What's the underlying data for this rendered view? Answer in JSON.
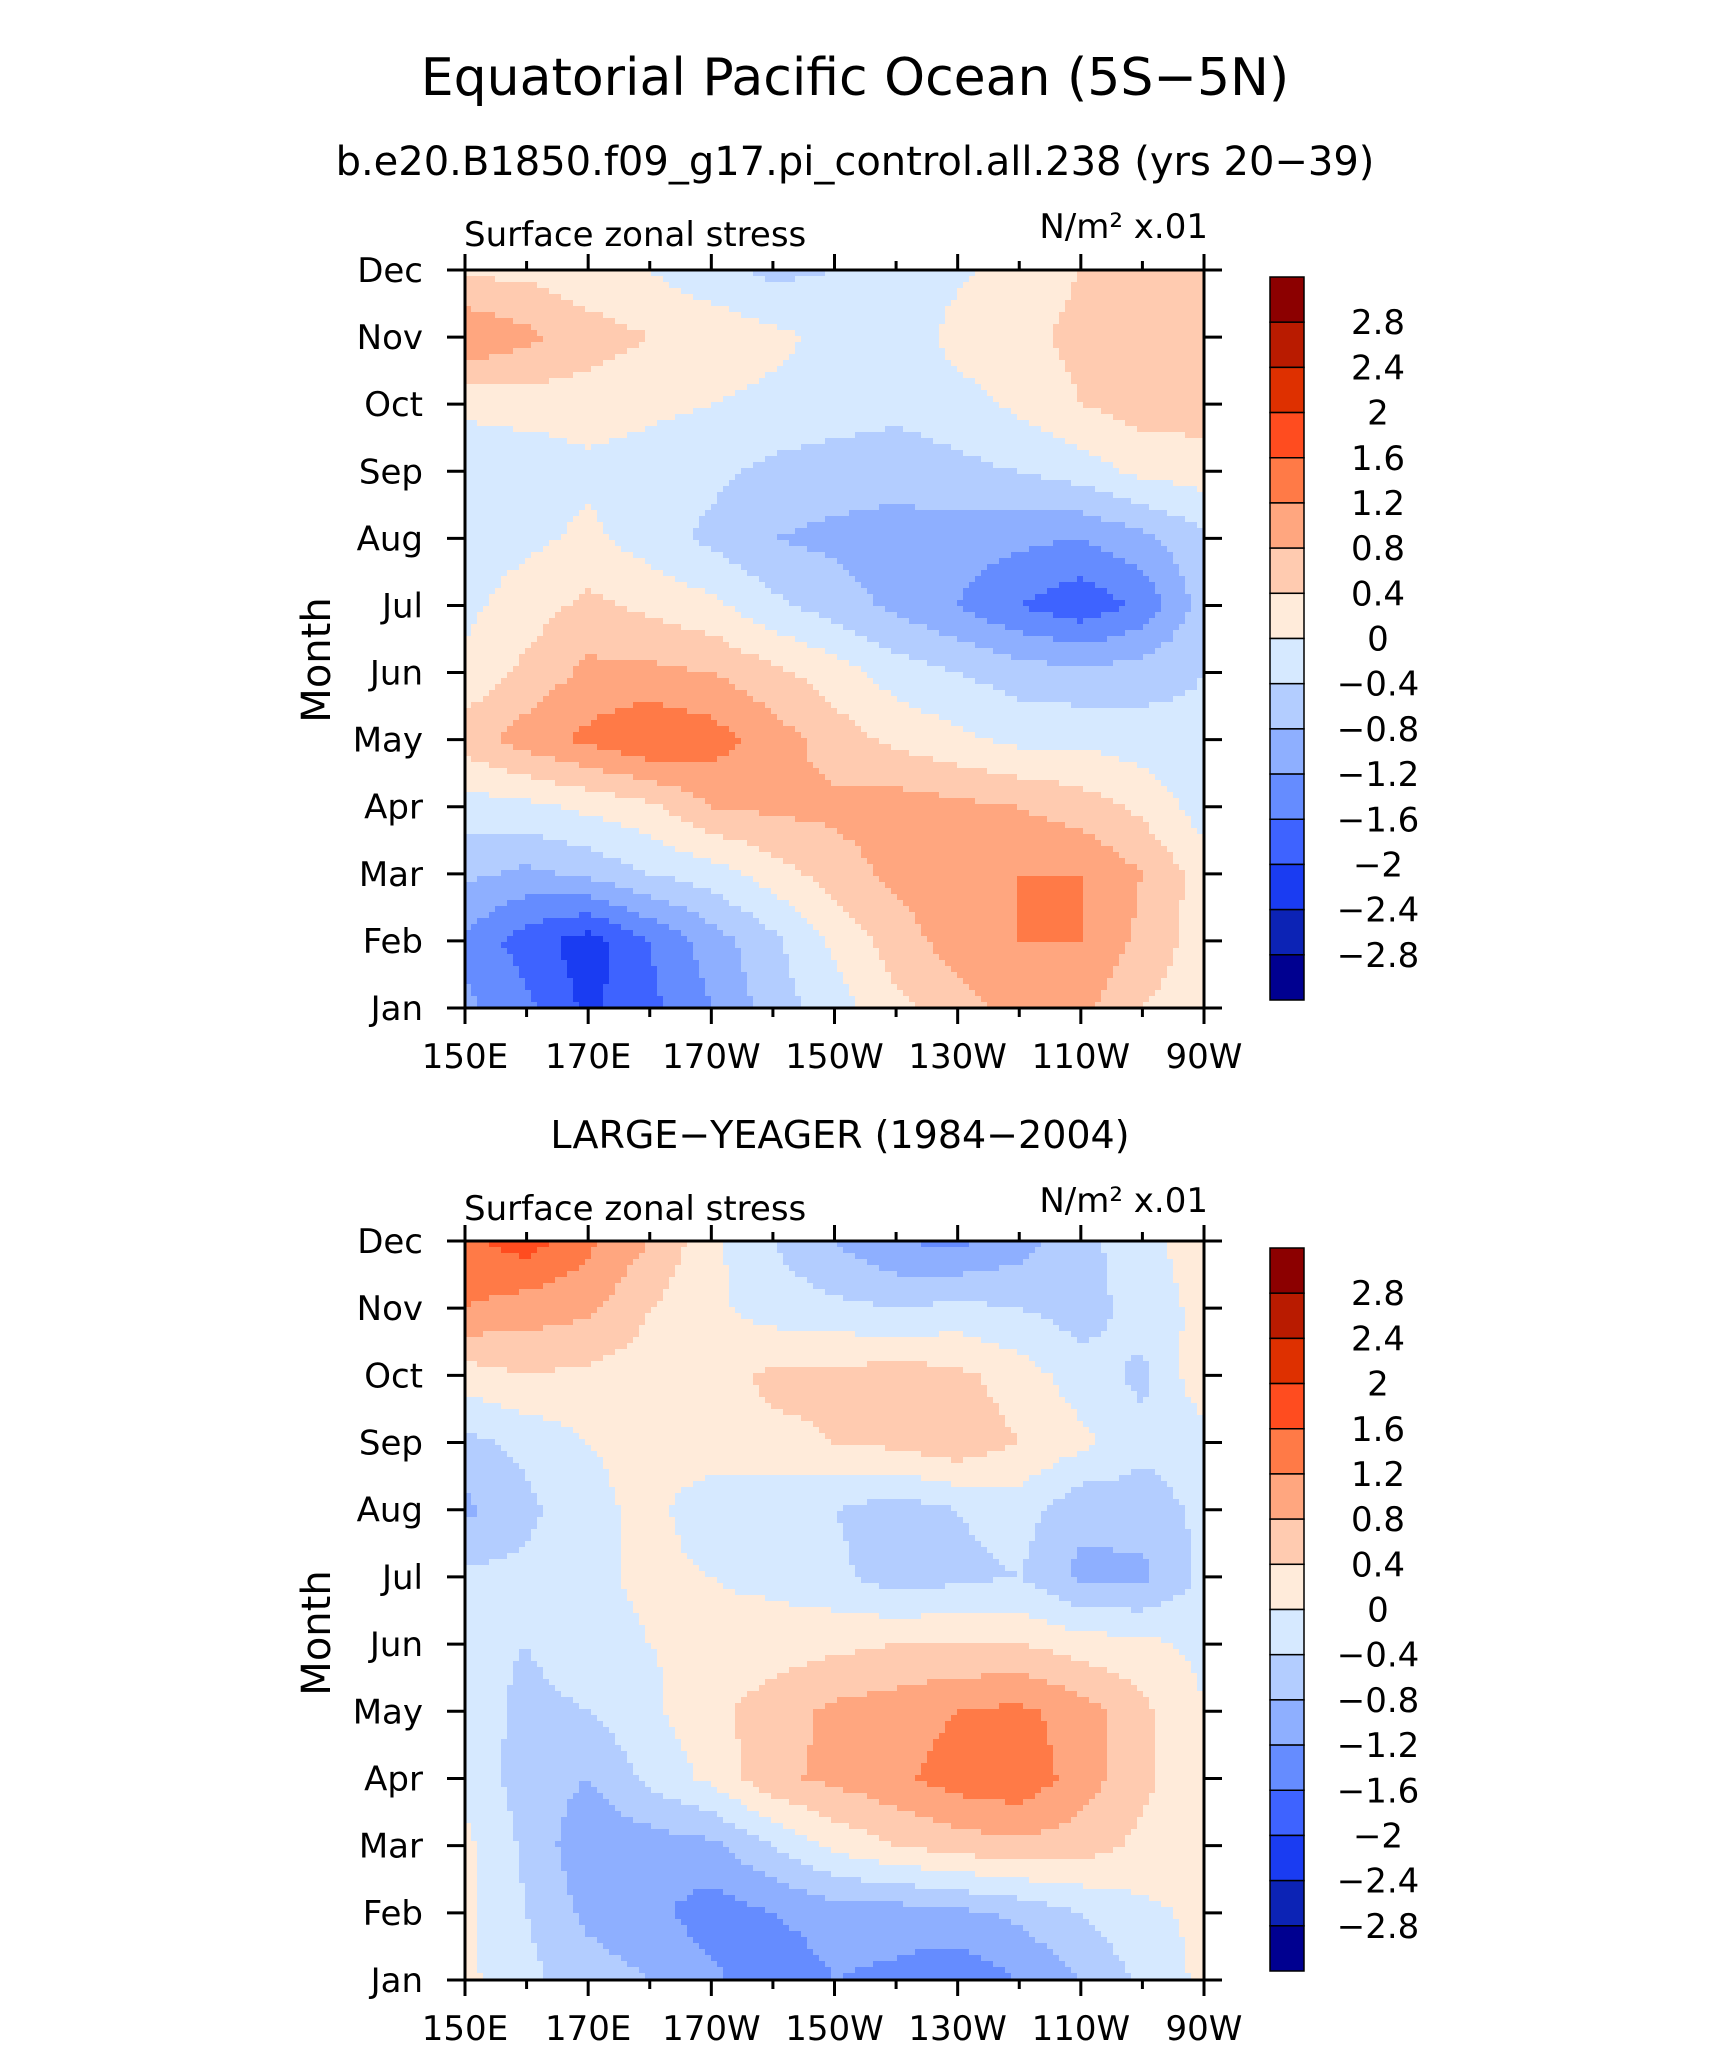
{
  "figure": {
    "title": "Equatorial Pacific Ocean (5S−5N)",
    "subtitle": "b.e20.B1850.f09_g17.pi_control.all.238 (yrs 20−39)"
  },
  "chart_data": [
    {
      "type": "heatmap",
      "title": "",
      "left_label": "Surface zonal stress",
      "right_label": "N/m² x.01",
      "ylabel": "Month",
      "xlabel": "",
      "x_ticks": [
        "150E",
        "170E",
        "170W",
        "150W",
        "130W",
        "110W",
        "90W"
      ],
      "y_ticks": [
        "Jan",
        "Feb",
        "Mar",
        "Apr",
        "May",
        "Jun",
        "Jul",
        "Aug",
        "Sep",
        "Oct",
        "Nov",
        "Dec"
      ],
      "x_range": [
        "150E",
        "90W"
      ],
      "y_range": [
        "Jan",
        "Dec"
      ],
      "grid_x": [
        "150E",
        "160E",
        "170E",
        "180",
        "170W",
        "160W",
        "150W",
        "140W",
        "130W",
        "120W",
        "110W",
        "100W",
        "90W"
      ],
      "grid_y": [
        "Jan",
        "Feb",
        "Mar",
        "Apr",
        "May",
        "Jun",
        "Jul",
        "Aug",
        "Sep",
        "Oct",
        "Nov",
        "Dec"
      ],
      "values": [
        [
          -1.1,
          -1.5,
          -2.1,
          -1.7,
          -1.2,
          -0.6,
          -0.2,
          0.3,
          0.6,
          1.0,
          0.9,
          0.4,
          0.1
        ],
        [
          -1.3,
          -1.8,
          -2.2,
          -1.6,
          -1.0,
          -0.5,
          0.1,
          0.6,
          1.0,
          1.2,
          1.2,
          0.7,
          0.2
        ],
        [
          -0.7,
          -0.9,
          -0.7,
          -0.4,
          -0.2,
          0.2,
          0.6,
          0.9,
          1.1,
          1.2,
          1.2,
          0.8,
          0.2
        ],
        [
          -0.2,
          -0.1,
          0.1,
          0.3,
          0.8,
          0.9,
          0.9,
          1.0,
          0.9,
          0.8,
          0.6,
          0.3,
          -0.2
        ],
        [
          0.6,
          1.0,
          1.3,
          1.6,
          1.4,
          1.0,
          0.6,
          0.3,
          0.1,
          -0.1,
          -0.1,
          -0.2,
          -0.3
        ],
        [
          0.1,
          0.5,
          0.9,
          0.9,
          0.8,
          0.5,
          0.2,
          -0.2,
          -0.4,
          -0.6,
          -0.7,
          -0.6,
          -0.4
        ],
        [
          -0.1,
          0.2,
          0.5,
          0.3,
          0.1,
          -0.3,
          -0.6,
          -0.9,
          -1.2,
          -1.6,
          -1.9,
          -1.5,
          -0.6
        ],
        [
          -0.2,
          -0.1,
          0.1,
          -0.2,
          -0.5,
          -0.8,
          -0.9,
          -1.0,
          -1.0,
          -1.1,
          -1.2,
          -0.9,
          -0.5
        ],
        [
          -0.3,
          -0.3,
          -0.1,
          -0.2,
          -0.3,
          -0.5,
          -0.6,
          -0.6,
          -0.5,
          -0.4,
          -0.2,
          0.1,
          0.2
        ],
        [
          0.1,
          0.2,
          0.2,
          0.1,
          0.0,
          -0.1,
          -0.2,
          -0.3,
          -0.2,
          0.1,
          0.4,
          0.6,
          0.6
        ],
        [
          1.2,
          0.9,
          0.6,
          0.4,
          0.3,
          0.1,
          -0.1,
          -0.4,
          0.2,
          0.3,
          0.5,
          0.7,
          0.6
        ],
        [
          0.3,
          0.3,
          0.1,
          0.0,
          -0.3,
          -0.5,
          -0.4,
          -0.3,
          -0.1,
          0.2,
          0.4,
          0.6,
          0.6
        ]
      ]
    },
    {
      "type": "heatmap",
      "title": "LARGE−YEAGER (1984−2004)",
      "left_label": "Surface zonal stress",
      "right_label": "N/m² x.01",
      "ylabel": "Month",
      "xlabel": "",
      "x_ticks": [
        "150E",
        "170E",
        "170W",
        "150W",
        "130W",
        "110W",
        "90W"
      ],
      "y_ticks": [
        "Jan",
        "Feb",
        "Mar",
        "Apr",
        "May",
        "Jun",
        "Jul",
        "Aug",
        "Sep",
        "Oct",
        "Nov",
        "Dec"
      ],
      "x_range": [
        "150E",
        "90W"
      ],
      "y_range": [
        "Jan",
        "Dec"
      ],
      "grid_x": [
        "150E",
        "160E",
        "170E",
        "180",
        "170W",
        "160W",
        "150W",
        "140W",
        "130W",
        "120W",
        "110W",
        "100W",
        "90W"
      ],
      "grid_y": [
        "Jan",
        "Feb",
        "Mar",
        "Apr",
        "May",
        "Jun",
        "Jul",
        "Aug",
        "Sep",
        "Oct",
        "Nov",
        "Dec"
      ],
      "values": [
        [
          0.1,
          -0.3,
          -0.6,
          -0.8,
          -1.1,
          -1.5,
          -1.2,
          -1.3,
          -1.5,
          -1.2,
          -0.8,
          -0.3,
          0.1
        ],
        [
          0.1,
          -0.4,
          -0.9,
          -1.1,
          -1.4,
          -1.2,
          -1.0,
          -1.0,
          -0.9,
          -0.7,
          -0.4,
          -0.1,
          0.1
        ],
        [
          0.1,
          -0.5,
          -1.1,
          -1.0,
          -0.9,
          -0.4,
          0.1,
          0.4,
          0.6,
          0.7,
          0.6,
          0.3,
          0.1
        ],
        [
          -0.1,
          -0.6,
          -0.8,
          -0.3,
          0.1,
          0.7,
          0.9,
          1.1,
          1.4,
          1.5,
          1.0,
          0.5,
          0.1
        ],
        [
          -0.2,
          -0.5,
          -0.4,
          -0.1,
          0.3,
          0.6,
          0.9,
          1.0,
          1.2,
          1.3,
          1.0,
          0.5,
          0.0
        ],
        [
          -0.3,
          -0.4,
          -0.2,
          0.0,
          0.1,
          0.2,
          0.3,
          0.4,
          0.4,
          0.4,
          0.2,
          0.1,
          -0.1
        ],
        [
          -0.3,
          -0.3,
          -0.1,
          0.1,
          0.0,
          -0.1,
          -0.3,
          -0.6,
          -0.5,
          -0.4,
          -0.9,
          -0.9,
          -0.3
        ],
        [
          -0.9,
          -0.5,
          -0.1,
          0.1,
          -0.2,
          -0.3,
          -0.4,
          -0.6,
          -0.4,
          -0.2,
          -0.7,
          -0.6,
          -0.3
        ],
        [
          -0.5,
          -0.3,
          0.0,
          0.1,
          0.2,
          0.3,
          0.4,
          0.5,
          0.7,
          0.4,
          0.1,
          -0.3,
          -0.2
        ],
        [
          0.2,
          0.4,
          0.3,
          0.2,
          0.2,
          0.5,
          0.5,
          0.6,
          0.5,
          0.2,
          -0.2,
          -0.5,
          0.3
        ],
        [
          1.2,
          1.0,
          0.9,
          0.4,
          0.1,
          -0.2,
          -0.3,
          -0.4,
          -0.3,
          -0.4,
          -0.6,
          -0.2,
          0.1
        ],
        [
          1.5,
          1.8,
          1.3,
          0.8,
          0.1,
          -0.4,
          -0.8,
          -1.2,
          -1.3,
          -1.0,
          -0.5,
          -0.2,
          0.3
        ]
      ]
    }
  ],
  "colorbar": {
    "labels": [
      "2.8",
      "2.4",
      "2",
      "1.6",
      "1.2",
      "0.8",
      "0.4",
      "0",
      "−0.4",
      "−0.8",
      "−1.2",
      "−1.6",
      "−2",
      "−2.4",
      "−2.8"
    ],
    "levels": [
      2.8,
      2.4,
      2.0,
      1.6,
      1.2,
      0.8,
      0.4,
      0.0,
      -0.4,
      -0.8,
      -1.2,
      -1.6,
      -2.0,
      -2.4,
      -2.8
    ],
    "colors_top_to_bottom": [
      "#8c0000",
      "#b91b00",
      "#de3000",
      "#ff4c1f",
      "#ff7a47",
      "#ffa67f",
      "#ffcbb0",
      "#ffebda",
      "#d6e9ff",
      "#b3cdff",
      "#8eafff",
      "#658cff",
      "#3e63ff",
      "#1a3cf2",
      "#0c23b5",
      "#000090"
    ]
  }
}
